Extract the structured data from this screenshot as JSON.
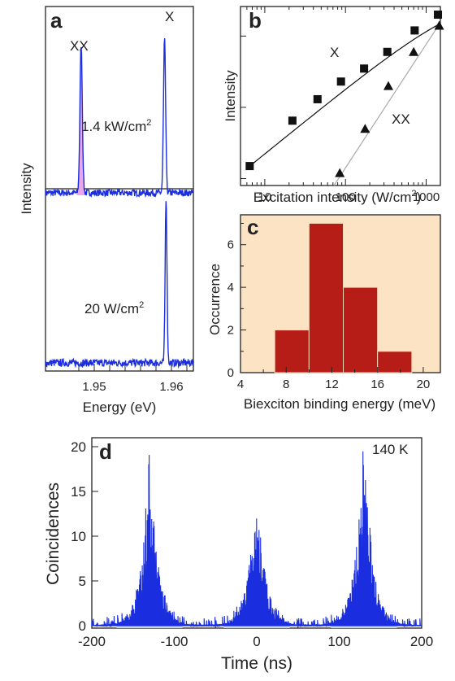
{
  "chart_data": [
    {
      "panel": "a",
      "type": "line",
      "xlabel": "Energy (eV)",
      "ylabel": "Intensity",
      "xticks": [
        "1.95",
        "1.96"
      ],
      "xlim": [
        1.944,
        1.9635
      ],
      "peak_labels": [
        "XX",
        "X"
      ],
      "series": [
        {
          "name": "1.4 kW/cm²",
          "label_main": "1.4 kW/cm",
          "label_sup": "2",
          "peaks": [
            {
              "x": 1.9487,
              "rel": 0.97,
              "w": 0.00022,
              "highlight": true
            },
            {
              "x": 1.9597,
              "rel": 1.0,
              "w": 0.0002
            }
          ]
        },
        {
          "name": "20 W/cm²",
          "label_main": "20 W/cm",
          "label_sup": "2",
          "peaks": [
            {
              "x": 1.9599,
              "rel": 1.0,
              "w": 0.00017
            }
          ]
        }
      ]
    },
    {
      "panel": "b",
      "type": "scatter",
      "xlabel_main": "Excitation intensity (W/cm",
      "xlabel_sup": "2",
      "xlabel_end": ")",
      "ylabel": "Intensity",
      "xscale": "log",
      "yscale": "log",
      "xlim": [
        5,
        1500
      ],
      "xticks": [
        "10",
        "100",
        "1000"
      ],
      "series": [
        {
          "name": "X",
          "marker": "square",
          "x": [
            6.5,
            22,
            45,
            88,
            170,
            330,
            720,
            1400
          ],
          "y": [
            1.5,
            6.5,
            13,
            23,
            35,
            60,
            120,
            200
          ]
        },
        {
          "name": "XX",
          "marker": "triangle",
          "x": [
            85,
            175,
            340,
            700,
            1450
          ],
          "y": [
            1.2,
            5,
            20,
            60,
            140
          ]
        }
      ]
    },
    {
      "panel": "c",
      "type": "bar",
      "xlabel": "Biexciton binding energy (meV)",
      "ylabel": "Occurrence",
      "bin_edges": [
        7,
        10,
        13,
        16,
        19
      ],
      "values": [
        2,
        7,
        4,
        1
      ],
      "xlim": [
        4,
        21.5
      ],
      "ylim": [
        0,
        7.4
      ],
      "xticks": [
        "4",
        "8",
        "12",
        "16",
        "20"
      ],
      "yticks": [
        "0",
        "2",
        "4",
        "6"
      ]
    },
    {
      "panel": "d",
      "type": "bar",
      "xlabel": "Time (ns)",
      "ylabel": "Coincidences",
      "annotation": "140 K",
      "xlim": [
        -200,
        200
      ],
      "ylim": [
        0,
        21
      ],
      "xticks": [
        "-200",
        "-100",
        "0",
        "100",
        "200"
      ],
      "yticks": [
        "0",
        "5",
        "10",
        "15",
        "20"
      ],
      "peaks": [
        {
          "center": -130,
          "height": 17
        },
        {
          "center": 0,
          "height": 14
        },
        {
          "center": 130,
          "height": 19
        }
      ]
    }
  ],
  "colors": {
    "trace": "#1a2ee0",
    "highlight": "#e9a6ea",
    "bar_fill": "#b51d16",
    "panel_bg": "#fbe3c4",
    "fit_x": "#111111",
    "fit_xx": "#aaaaaa",
    "peak_fill": "#c2d6f5"
  }
}
